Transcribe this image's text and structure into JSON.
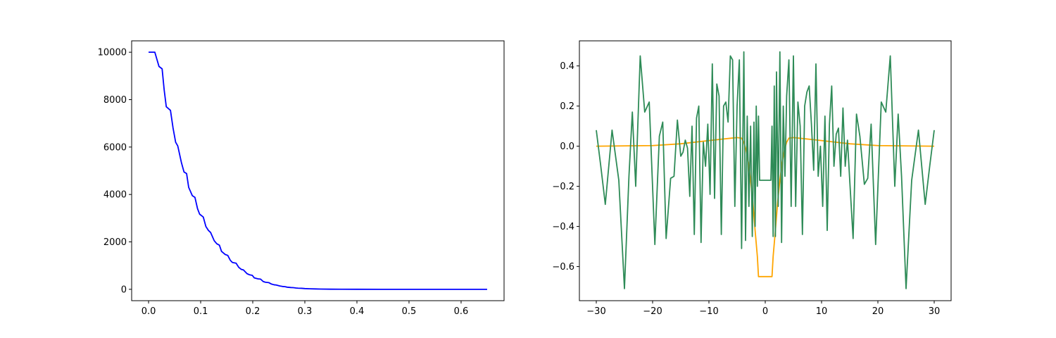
{
  "chart_data": [
    {
      "type": "line",
      "xlim": [
        -0.0325,
        0.6825
      ],
      "ylim": [
        -480,
        10480
      ],
      "x_ticks": [
        0.0,
        0.1,
        0.2,
        0.3,
        0.4,
        0.5,
        0.6
      ],
      "x_tick_labels": [
        "0.0",
        "0.1",
        "0.2",
        "0.3",
        "0.4",
        "0.5",
        "0.6"
      ],
      "y_ticks": [
        0,
        2000,
        4000,
        6000,
        8000,
        10000
      ],
      "y_tick_labels": [
        "0",
        "2000",
        "4000",
        "6000",
        "8000",
        "10000"
      ],
      "series": [
        {
          "color": "#0000ff",
          "x": [
            0.0,
            0.012,
            0.016,
            0.02,
            0.026,
            0.03,
            0.034,
            0.042,
            0.047,
            0.052,
            0.056,
            0.063,
            0.068,
            0.073,
            0.077,
            0.084,
            0.089,
            0.094,
            0.098,
            0.105,
            0.11,
            0.115,
            0.119,
            0.126,
            0.131,
            0.136,
            0.14,
            0.147,
            0.152,
            0.157,
            0.161,
            0.168,
            0.173,
            0.178,
            0.182,
            0.189,
            0.194,
            0.199,
            0.203,
            0.21,
            0.215,
            0.22,
            0.224,
            0.231,
            0.236,
            0.241,
            0.245,
            0.252,
            0.257,
            0.262,
            0.266,
            0.273,
            0.278,
            0.283,
            0.287,
            0.294,
            0.3,
            0.31,
            0.32,
            0.33,
            0.35,
            0.37,
            0.4,
            0.45,
            0.5,
            0.55,
            0.6,
            0.65
          ],
          "y": [
            10000,
            10000,
            9700,
            9400,
            9300,
            8400,
            7700,
            7550,
            6800,
            6200,
            6050,
            5350,
            4950,
            4880,
            4300,
            3950,
            3880,
            3400,
            3170,
            3050,
            2650,
            2480,
            2400,
            2050,
            1920,
            1860,
            1600,
            1470,
            1430,
            1220,
            1130,
            1100,
            930,
            840,
            820,
            660,
            610,
            590,
            480,
            440,
            430,
            330,
            300,
            280,
            220,
            190,
            180,
            140,
            120,
            110,
            90,
            75,
            70,
            55,
            48,
            42,
            30,
            22,
            15,
            10,
            5,
            3,
            1,
            0,
            0,
            0,
            0,
            0
          ]
        }
      ]
    },
    {
      "type": "line",
      "xlim": [
        -33,
        33
      ],
      "ylim": [
        -0.77,
        0.525
      ],
      "x_ticks": [
        -30,
        -20,
        -10,
        0,
        10,
        20,
        30
      ],
      "x_tick_labels": [
        "−30",
        "−20",
        "−10",
        "0",
        "10",
        "20",
        "30"
      ],
      "y_ticks": [
        -0.6,
        -0.4,
        -0.2,
        0.0,
        0.2,
        0.4
      ],
      "y_tick_labels": [
        "−0.6",
        "−0.4",
        "−0.2",
        "0.0",
        "0.2",
        "0.4"
      ],
      "series": [
        {
          "color": "#ffa500",
          "x": [
            -30,
            -20,
            -15,
            -10,
            -8,
            -6,
            -5,
            -4.2,
            -3.8,
            -3.4,
            -3,
            -2.6,
            -2.2,
            -1.8,
            -1.4,
            -1.2,
            -0.6,
            0,
            0.6,
            1.2,
            1.4,
            1.8,
            2.2,
            2.6,
            3,
            3.4,
            3.8,
            4.2,
            5,
            6,
            8,
            10,
            15,
            20,
            30
          ],
          "y": [
            0.0,
            0.003,
            0.012,
            0.028,
            0.034,
            0.04,
            0.043,
            0.04,
            0.02,
            -0.02,
            -0.08,
            -0.17,
            -0.28,
            -0.42,
            -0.55,
            -0.65,
            -0.65,
            -0.65,
            -0.65,
            -0.65,
            -0.55,
            -0.42,
            -0.28,
            -0.17,
            -0.08,
            -0.02,
            0.02,
            0.04,
            0.043,
            0.04,
            0.034,
            0.028,
            0.012,
            0.003,
            0.0
          ]
        },
        {
          "color": "#2e8b57",
          "x": [
            -30,
            -29.2,
            -28.4,
            -27.2,
            -26.0,
            -25.0,
            -24.2,
            -23.6,
            -23.0,
            -22.2,
            -21.4,
            -20.6,
            -19.6,
            -18.8,
            -18.2,
            -17.6,
            -16.8,
            -16.2,
            -15.6,
            -15.0,
            -14.6,
            -14.2,
            -13.8,
            -13.4,
            -13.0,
            -12.6,
            -12.2,
            -11.8,
            -11.4,
            -11.0,
            -10.6,
            -10.2,
            -9.8,
            -9.4,
            -9.0,
            -8.6,
            -8.2,
            -7.8,
            -7.4,
            -7.0,
            -6.6,
            -6.2,
            -5.8,
            -5.4,
            -5.0,
            -4.6,
            -4.2,
            -3.8,
            -3.5,
            -3.2,
            -2.9,
            -2.6,
            -2.3,
            -2.0,
            -1.8,
            -1.6,
            -1.4,
            -1.2,
            -1.0,
            1.0,
            1.2,
            1.4,
            1.6,
            1.8,
            2.0,
            2.3,
            2.6,
            2.9,
            3.2,
            3.5,
            3.8,
            4.2,
            4.6,
            5.0,
            5.4,
            5.8,
            6.2,
            6.6,
            7.0,
            7.4,
            7.8,
            8.2,
            8.6,
            9.0,
            9.4,
            9.8,
            10.2,
            10.6,
            11.0,
            11.4,
            11.8,
            12.2,
            12.6,
            13.0,
            13.4,
            13.8,
            14.2,
            14.6,
            15.0,
            15.6,
            16.2,
            16.8,
            17.6,
            18.2,
            18.8,
            19.6,
            20.6,
            21.4,
            22.2,
            23.0,
            23.6,
            24.2,
            25.0,
            26.0,
            27.2,
            28.4,
            29.2,
            30
          ],
          "y": [
            0.08,
            -0.1,
            -0.29,
            0.08,
            -0.17,
            -0.71,
            -0.15,
            0.17,
            -0.2,
            0.45,
            0.17,
            0.22,
            -0.49,
            0.05,
            0.12,
            -0.46,
            -0.16,
            -0.15,
            0.13,
            -0.05,
            -0.03,
            0.03,
            -0.01,
            -0.25,
            0.1,
            -0.44,
            0.14,
            0.2,
            -0.48,
            0.02,
            -0.1,
            0.11,
            -0.24,
            0.41,
            -0.26,
            0.31,
            0.25,
            -0.44,
            0.2,
            0.22,
            0.12,
            0.45,
            0.43,
            -0.3,
            0.2,
            0.43,
            -0.51,
            0.47,
            -0.47,
            0.15,
            -0.3,
            0.1,
            -0.45,
            0.12,
            -0.4,
            0.2,
            -0.2,
            0.15,
            -0.17,
            -0.17,
            0.1,
            -0.45,
            0.3,
            -0.45,
            0.37,
            -0.3,
            0.47,
            -0.48,
            0.2,
            -0.15,
            0.25,
            0.43,
            -0.3,
            0.45,
            -0.3,
            0.22,
            0.1,
            -0.44,
            0.2,
            0.27,
            0.3,
            0.11,
            -0.12,
            0.41,
            -0.15,
            0.0,
            -0.3,
            0.15,
            -0.42,
            0.11,
            0.3,
            -0.1,
            0.06,
            0.09,
            -0.15,
            0.19,
            -0.1,
            0.03,
            -0.17,
            -0.46,
            0.16,
            0.05,
            -0.19,
            -0.16,
            0.11,
            -0.49,
            0.22,
            0.17,
            0.45,
            -0.2,
            0.16,
            -0.15,
            -0.71,
            -0.17,
            0.08,
            -0.29,
            -0.1,
            0.08
          ]
        }
      ]
    }
  ]
}
